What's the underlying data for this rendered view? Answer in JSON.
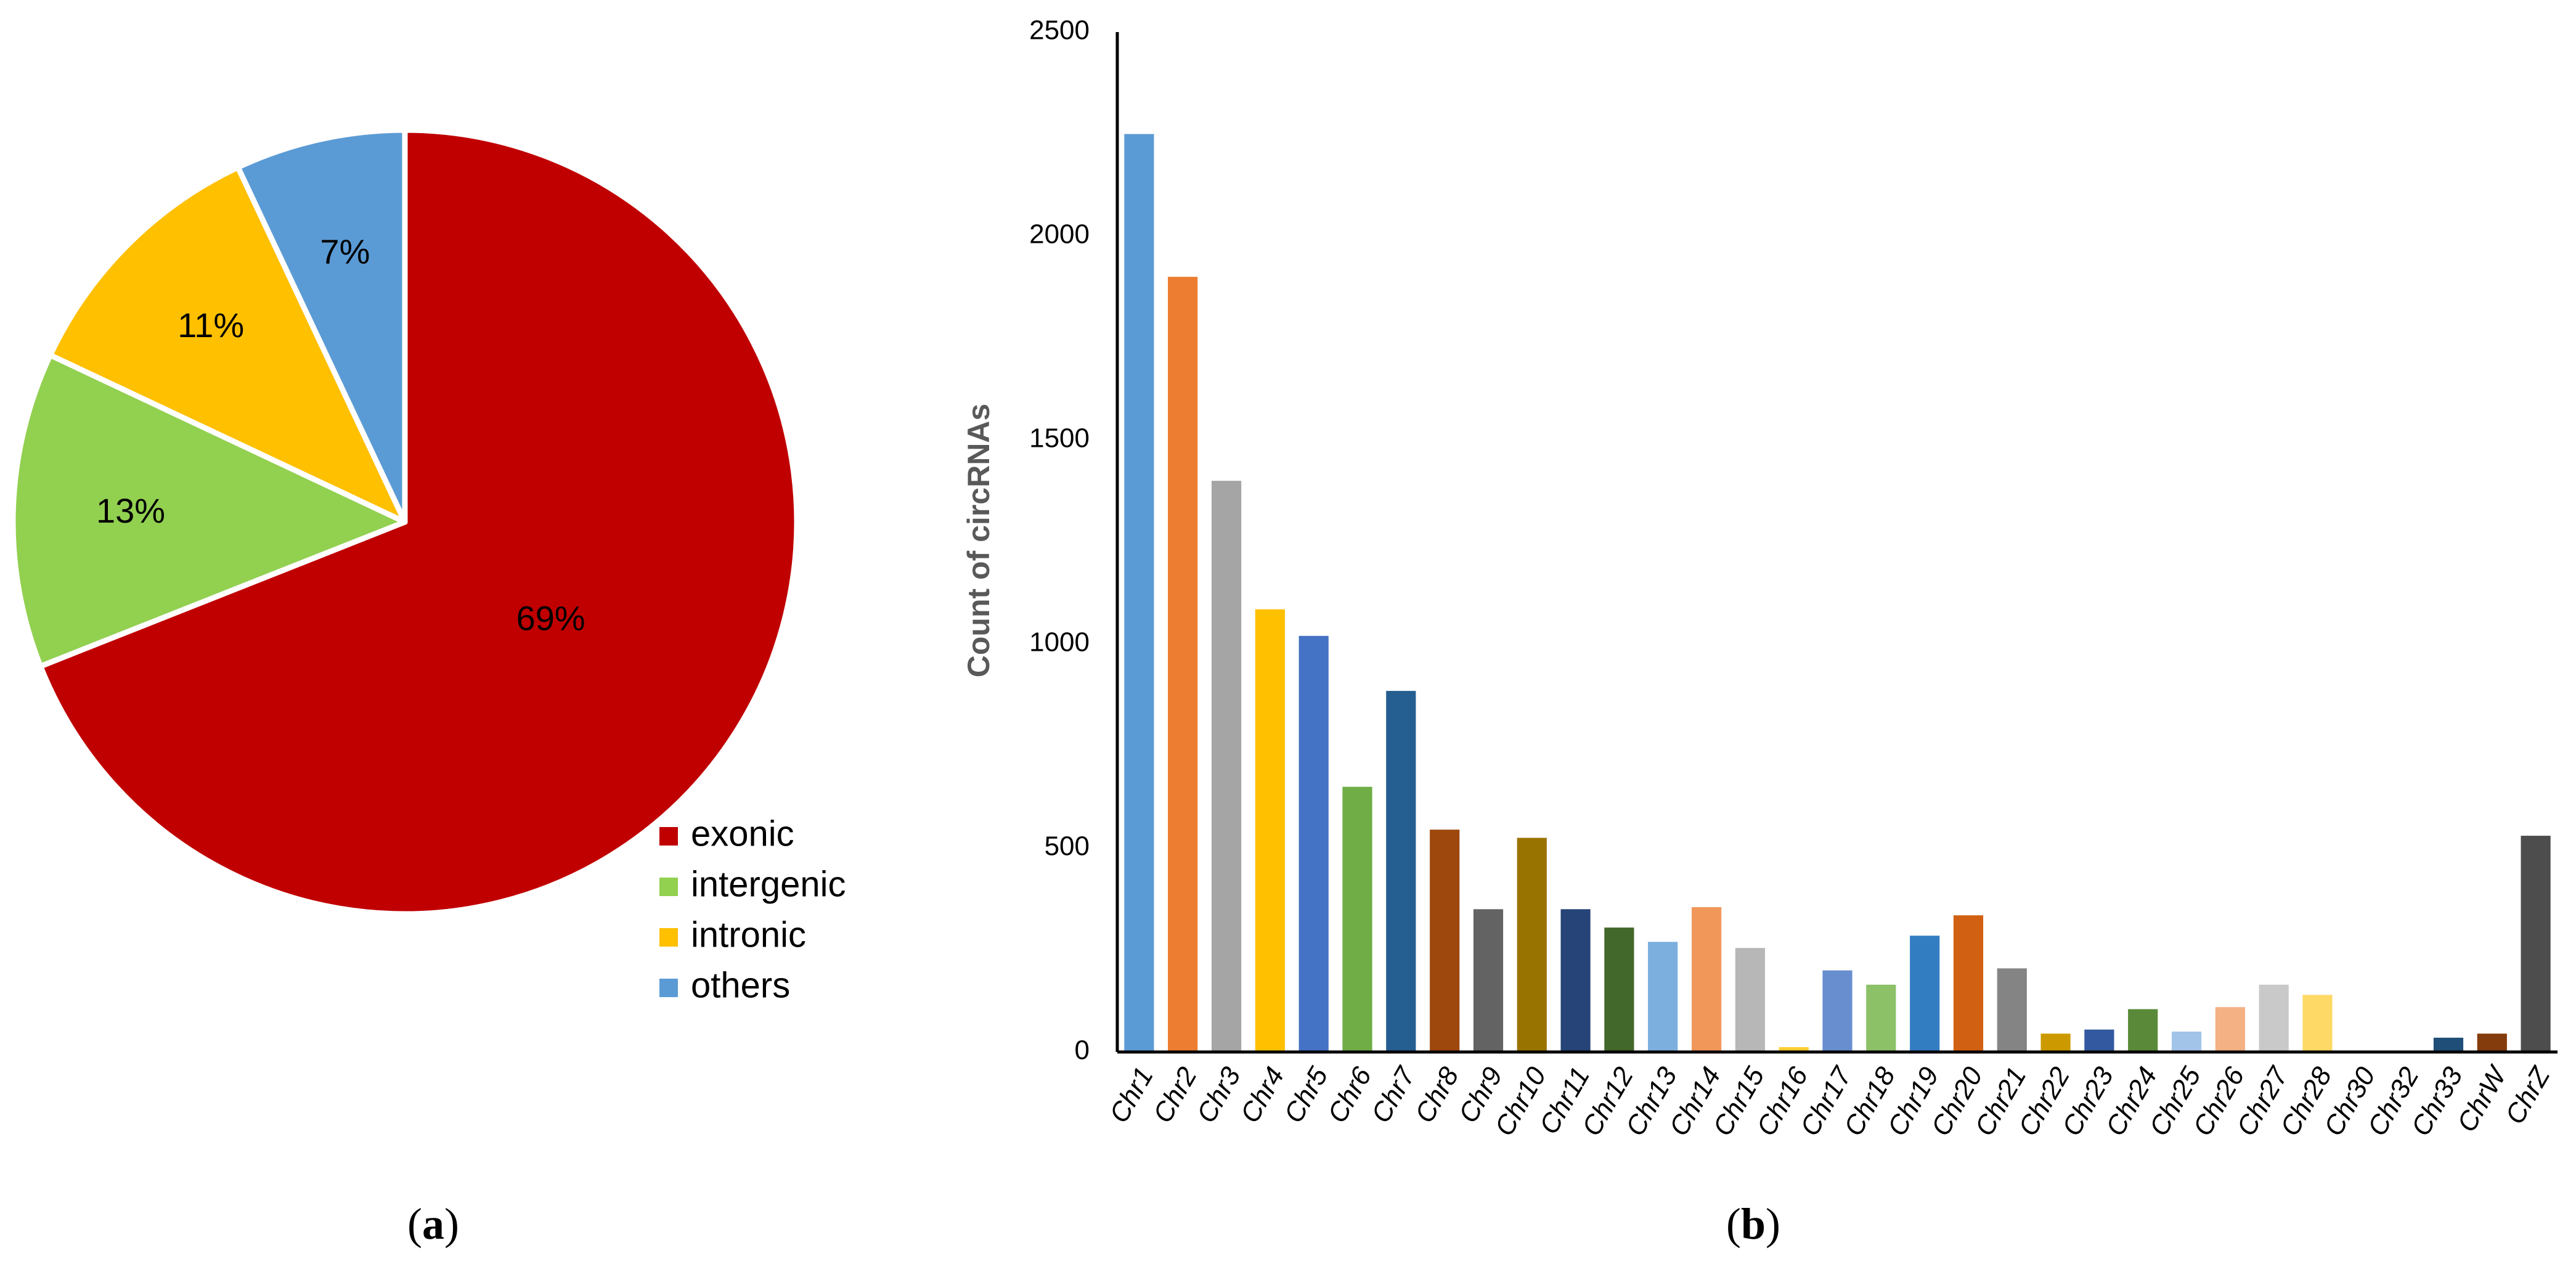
{
  "panels": [
    {
      "label_open": "(",
      "label_letter": "a",
      "label_close": ")"
    },
    {
      "label_open": "(",
      "label_letter": "b",
      "label_close": ")"
    }
  ],
  "chart_data": [
    {
      "type": "pie",
      "title": "",
      "slices": [
        {
          "name": "exonic",
          "value": 69,
          "label": "69%",
          "color": "#C00000"
        },
        {
          "name": "intergenic",
          "value": 13,
          "label": "13%",
          "color": "#92D050"
        },
        {
          "name": "intronic",
          "value": 11,
          "label": "11%",
          "color": "#FFC000"
        },
        {
          "name": "others",
          "value": 7,
          "label": "7%",
          "color": "#5B9BD5"
        }
      ],
      "legend": {
        "placement": "bottom-right",
        "entries": [
          "exonic",
          "intergenic",
          "intronic",
          "others"
        ]
      }
    },
    {
      "type": "bar",
      "title": "",
      "xlabel": "",
      "ylabel": "Count of circRNAs",
      "ylim": [
        0,
        2500
      ],
      "yticks": [
        0,
        500,
        1000,
        1500,
        2000,
        2500
      ],
      "grid": false,
      "categories": [
        "Chr1",
        "Chr2",
        "Chr3",
        "Chr4",
        "Chr5",
        "Chr6",
        "Chr7",
        "Chr8",
        "Chr9",
        "Chr10",
        "Chr11",
        "Chr12",
        "Chr13",
        "Chr14",
        "Chr15",
        "Chr16",
        "Chr17",
        "Chr18",
        "Chr19",
        "Chr20",
        "Chr21",
        "Chr22",
        "Chr23",
        "Chr24",
        "Chr25",
        "Chr26",
        "Chr27",
        "Chr28",
        "Chr30",
        "Chr32",
        "Chr33",
        "ChrW",
        "ChrZ"
      ],
      "values": [
        2250,
        1900,
        1400,
        1085,
        1020,
        650,
        885,
        545,
        350,
        525,
        350,
        305,
        270,
        355,
        255,
        12,
        200,
        165,
        285,
        335,
        205,
        45,
        55,
        105,
        50,
        110,
        165,
        140,
        0,
        0,
        35,
        45,
        530
      ],
      "colors": [
        "#5B9BD5",
        "#ED7D31",
        "#A5A5A5",
        "#FFC000",
        "#4472C4",
        "#70AD47",
        "#255E91",
        "#9E480E",
        "#636363",
        "#997300",
        "#264478",
        "#43682B",
        "#7CAFDD",
        "#F1975A",
        "#B7B7B7",
        "#FFCD33",
        "#698ED0",
        "#8CC168",
        "#327DC2",
        "#D26012",
        "#848484",
        "#CC9A00",
        "#335AA1",
        "#5A8A39",
        "#A3C4E9",
        "#F4B183",
        "#C9C9C9",
        "#FFD966",
        "#9DC3E6",
        "#F8CBAD",
        "#1F4E79",
        "#843C0C",
        "#4D4D4D"
      ]
    }
  ]
}
